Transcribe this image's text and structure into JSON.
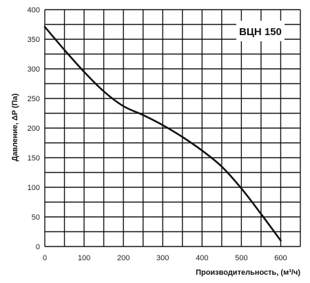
{
  "chart_data": {
    "type": "line",
    "model_label": "ВЦН 150",
    "xlabel": "Производительность, (м³/ч)",
    "ylabel": "Давление, ΔP (Па)",
    "xlim": [
      0,
      650
    ],
    "ylim": [
      0,
      400
    ],
    "x_ticks": [
      0,
      100,
      200,
      300,
      400,
      500,
      600
    ],
    "y_ticks": [
      0,
      50,
      100,
      150,
      200,
      250,
      300,
      350,
      400
    ],
    "grid": true,
    "grid_step_x": 50,
    "grid_step_y": 25,
    "series": [
      {
        "color": "#111111",
        "x": [
          0,
          50,
          100,
          150,
          200,
          250,
          300,
          350,
          400,
          450,
          500,
          550,
          600
        ],
        "y": [
          371,
          332,
          295,
          262,
          237,
          222,
          205,
          185,
          162,
          135,
          98,
          55,
          10
        ]
      }
    ]
  }
}
